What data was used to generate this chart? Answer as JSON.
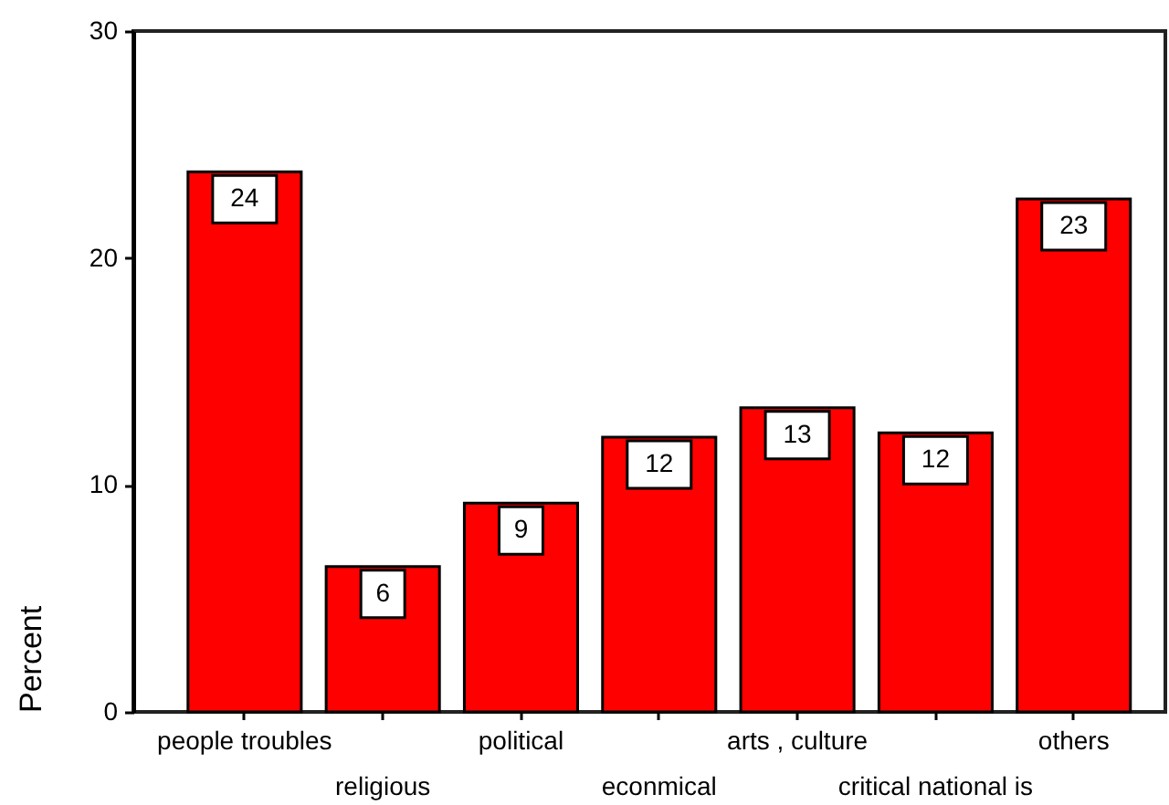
{
  "chart_data": {
    "type": "bar",
    "ylabel": "Percent",
    "categories": [
      "people troubles",
      "religious",
      "political",
      "econmical",
      "arts , culture",
      "critical national is",
      "others"
    ],
    "values": [
      23.8,
      6.4,
      9.2,
      12.1,
      13.4,
      12.3,
      22.6
    ],
    "value_labels": [
      "24",
      "6",
      "9",
      "12",
      "13",
      "12",
      "23"
    ],
    "color": "#ff0000",
    "ylim": [
      0,
      30
    ],
    "yticks": [
      0,
      10,
      20,
      30
    ]
  }
}
